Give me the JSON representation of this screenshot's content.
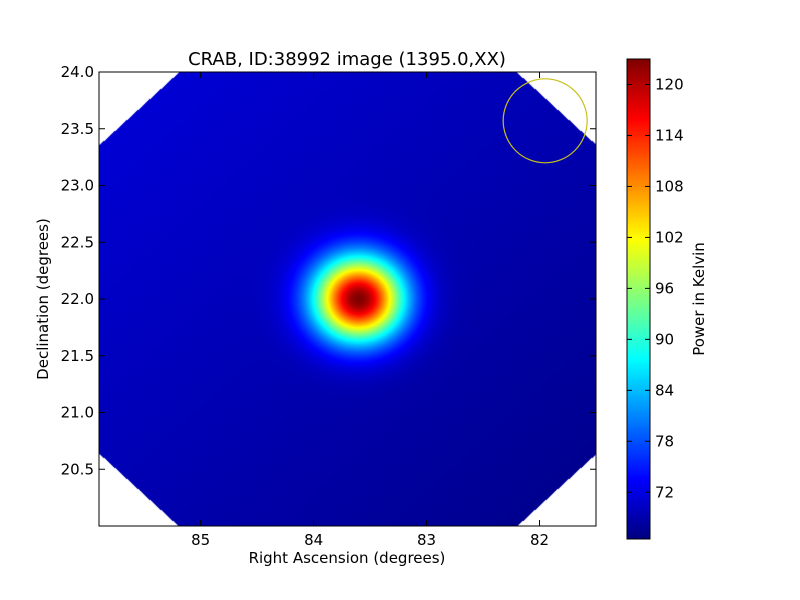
{
  "chart_data": {
    "type": "heatmap",
    "title": "CRAB, ID:38992 image (1395.0,XX)",
    "xlabel": "Right Ascension (degrees)",
    "ylabel": "Declination (degrees)",
    "colorbar_label": "Power in Kelvin",
    "xlim": [
      85.9,
      81.5
    ],
    "ylim": [
      20.0,
      24.0
    ],
    "x_ticks": [
      85,
      84,
      83,
      82
    ],
    "x_tick_labels": [
      "85",
      "84",
      "83",
      "82"
    ],
    "y_ticks": [
      20.5,
      21.0,
      21.5,
      22.0,
      22.5,
      23.0,
      23.5,
      24.0
    ],
    "y_tick_labels": [
      "20.5",
      "21.0",
      "21.5",
      "22.0",
      "22.5",
      "23.0",
      "23.5",
      "24.0"
    ],
    "colorbar_range": [
      66.5,
      123.0
    ],
    "colorbar_ticks": [
      72,
      78,
      84,
      90,
      96,
      102,
      108,
      114,
      120
    ],
    "colorbar_tick_labels": [
      "72",
      "78",
      "84",
      "90",
      "96",
      "102",
      "108",
      "114",
      "120"
    ],
    "colormap": "jet",
    "source": {
      "ra": 83.6,
      "dec": 22.0,
      "peak": 123.0,
      "fwhm_deg": 0.6
    },
    "background": {
      "value_top_left": 71.5,
      "value_bottom_right": 67.0
    },
    "beam_circle": {
      "ra": 81.95,
      "dec": 23.57,
      "radius_deg": 0.37,
      "color": "#c8c020"
    },
    "blanked_corners": true
  }
}
